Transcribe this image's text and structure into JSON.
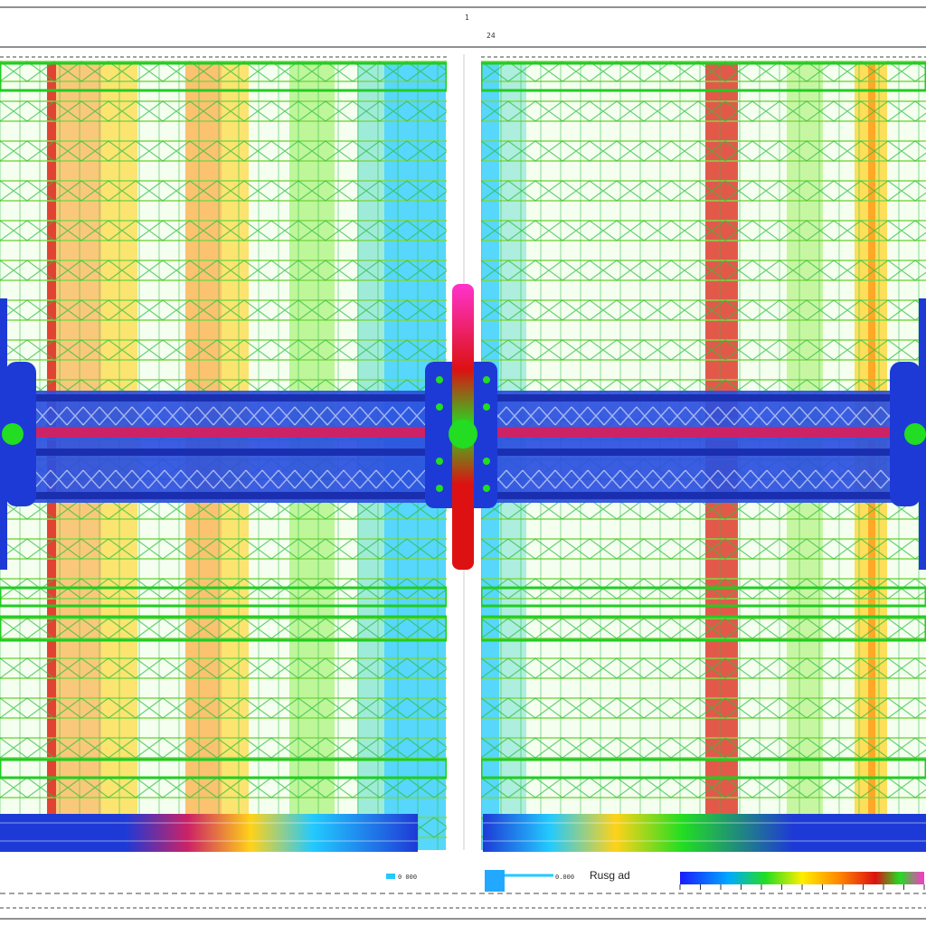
{
  "viewer": {
    "legend_title": "Rusg ad",
    "legend_value": "0.000",
    "colorbar_stops": [
      "#1a1aff",
      "#00aaff",
      "#00e5ff",
      "#22dd22",
      "#ffee00",
      "#ff8800",
      "#dd1111",
      "#8b0000",
      "#ff33cc"
    ],
    "ruler_top_marks": [
      "1",
      "24"
    ],
    "ruler_bottom_left": "0 000",
    "ruler_bottom_right": "0.000"
  },
  "model": {
    "panels": [
      "left-frame",
      "right-frame"
    ],
    "shaft": "horizontal-shaft",
    "flange": "center-flange",
    "bottom_beams": [
      "bottom-beam-left",
      "bottom-beam-right"
    ]
  },
  "colors": {
    "grid": "#7fd84a",
    "grid_dark": "#2fbf3f",
    "shaft_blue": "#1e3ad6",
    "shaft_red": "#cc2266",
    "cyan": "#22c9ff",
    "yellow": "#ffd21a",
    "orange": "#ff9a1a",
    "red": "#dd2211"
  },
  "icons": [
    "cross-brace-icon"
  ]
}
